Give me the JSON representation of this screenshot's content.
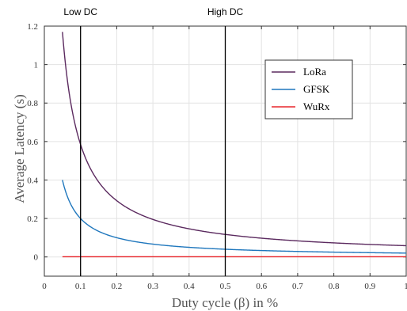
{
  "chart_data": {
    "type": "line",
    "title": "",
    "xlabel": "Duty cycle (β) in %",
    "ylabel": "Average Latency (s)",
    "xlim": [
      0,
      1
    ],
    "ylim": [
      -0.1,
      1.2
    ],
    "xticks": [
      0,
      0.1,
      0.2,
      0.3,
      0.4,
      0.5,
      0.6,
      0.7,
      0.8,
      0.9,
      1
    ],
    "xtick_labels": [
      "0",
      "0.1",
      "0.2",
      "0.3",
      "0.4",
      "0.5",
      "0.6",
      "0.7",
      "0.8",
      "0.9",
      "1"
    ],
    "yticks": [
      0,
      0.2,
      0.4,
      0.6,
      0.8,
      1,
      1.2
    ],
    "ytick_labels": [
      "0",
      "0.2",
      "0.4",
      "0.6",
      "0.8",
      "1",
      "1.2"
    ],
    "grid": true,
    "legend_position": "top-right",
    "series": [
      {
        "name": "LoRa",
        "color": "#5b2a5f",
        "x": [
          0.05,
          0.06,
          0.07,
          0.08,
          0.09,
          0.1,
          0.12,
          0.15,
          0.2,
          0.25,
          0.3,
          0.35,
          0.4,
          0.45,
          0.5,
          0.55,
          0.6,
          0.65,
          0.7,
          0.75,
          0.8,
          0.85,
          0.9,
          0.95,
          1.0
        ],
        "y": [
          1.17,
          0.975,
          0.836,
          0.731,
          0.65,
          0.585,
          0.488,
          0.39,
          0.293,
          0.234,
          0.195,
          0.167,
          0.146,
          0.13,
          0.117,
          0.106,
          0.0975,
          0.09,
          0.0836,
          0.078,
          0.0731,
          0.0688,
          0.065,
          0.0616,
          0.0585
        ]
      },
      {
        "name": "GFSK",
        "color": "#1f77bd",
        "x": [
          0.05,
          0.06,
          0.07,
          0.08,
          0.09,
          0.1,
          0.12,
          0.15,
          0.2,
          0.25,
          0.3,
          0.35,
          0.4,
          0.45,
          0.5,
          0.55,
          0.6,
          0.65,
          0.7,
          0.75,
          0.8,
          0.85,
          0.9,
          0.95,
          1.0
        ],
        "y": [
          0.4,
          0.333,
          0.286,
          0.25,
          0.222,
          0.2,
          0.167,
          0.133,
          0.1,
          0.08,
          0.0667,
          0.0571,
          0.05,
          0.0444,
          0.04,
          0.0364,
          0.0333,
          0.0308,
          0.0286,
          0.0267,
          0.025,
          0.0235,
          0.0222,
          0.0211,
          0.02
        ]
      },
      {
        "name": "WuRx",
        "color": "#e8262b",
        "x": [
          0.05,
          1.0
        ],
        "y": [
          0.001,
          0.001
        ]
      }
    ],
    "vertical_lines": [
      {
        "x": 0.1,
        "label": "Low DC"
      },
      {
        "x": 0.5,
        "label": "High DC"
      }
    ]
  }
}
